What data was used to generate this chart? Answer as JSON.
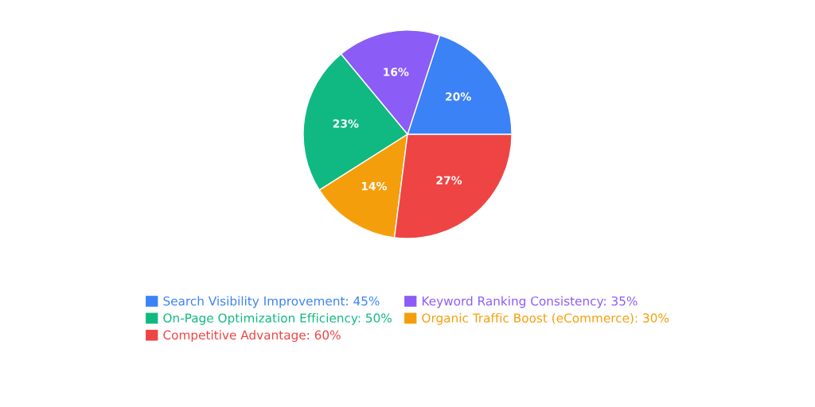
{
  "chart_data": {
    "type": "pie",
    "categories": [
      "Search Visibility Improvement: 45%",
      "Keyword Ranking Consistency: 35%",
      "On-Page Optimization Efficiency: 50%",
      "Organic Traffic Boost (eCommerce): 30%",
      "Competitive Advantage: 60%"
    ],
    "values": [
      20,
      16,
      23,
      14,
      27
    ],
    "value_labels": [
      "20%",
      "16%",
      "23%",
      "14%",
      "27%"
    ],
    "colors": [
      "#3b82f6",
      "#8b5cf6",
      "#10b981",
      "#f59e0b",
      "#ef4444"
    ],
    "legend": "bottom"
  }
}
